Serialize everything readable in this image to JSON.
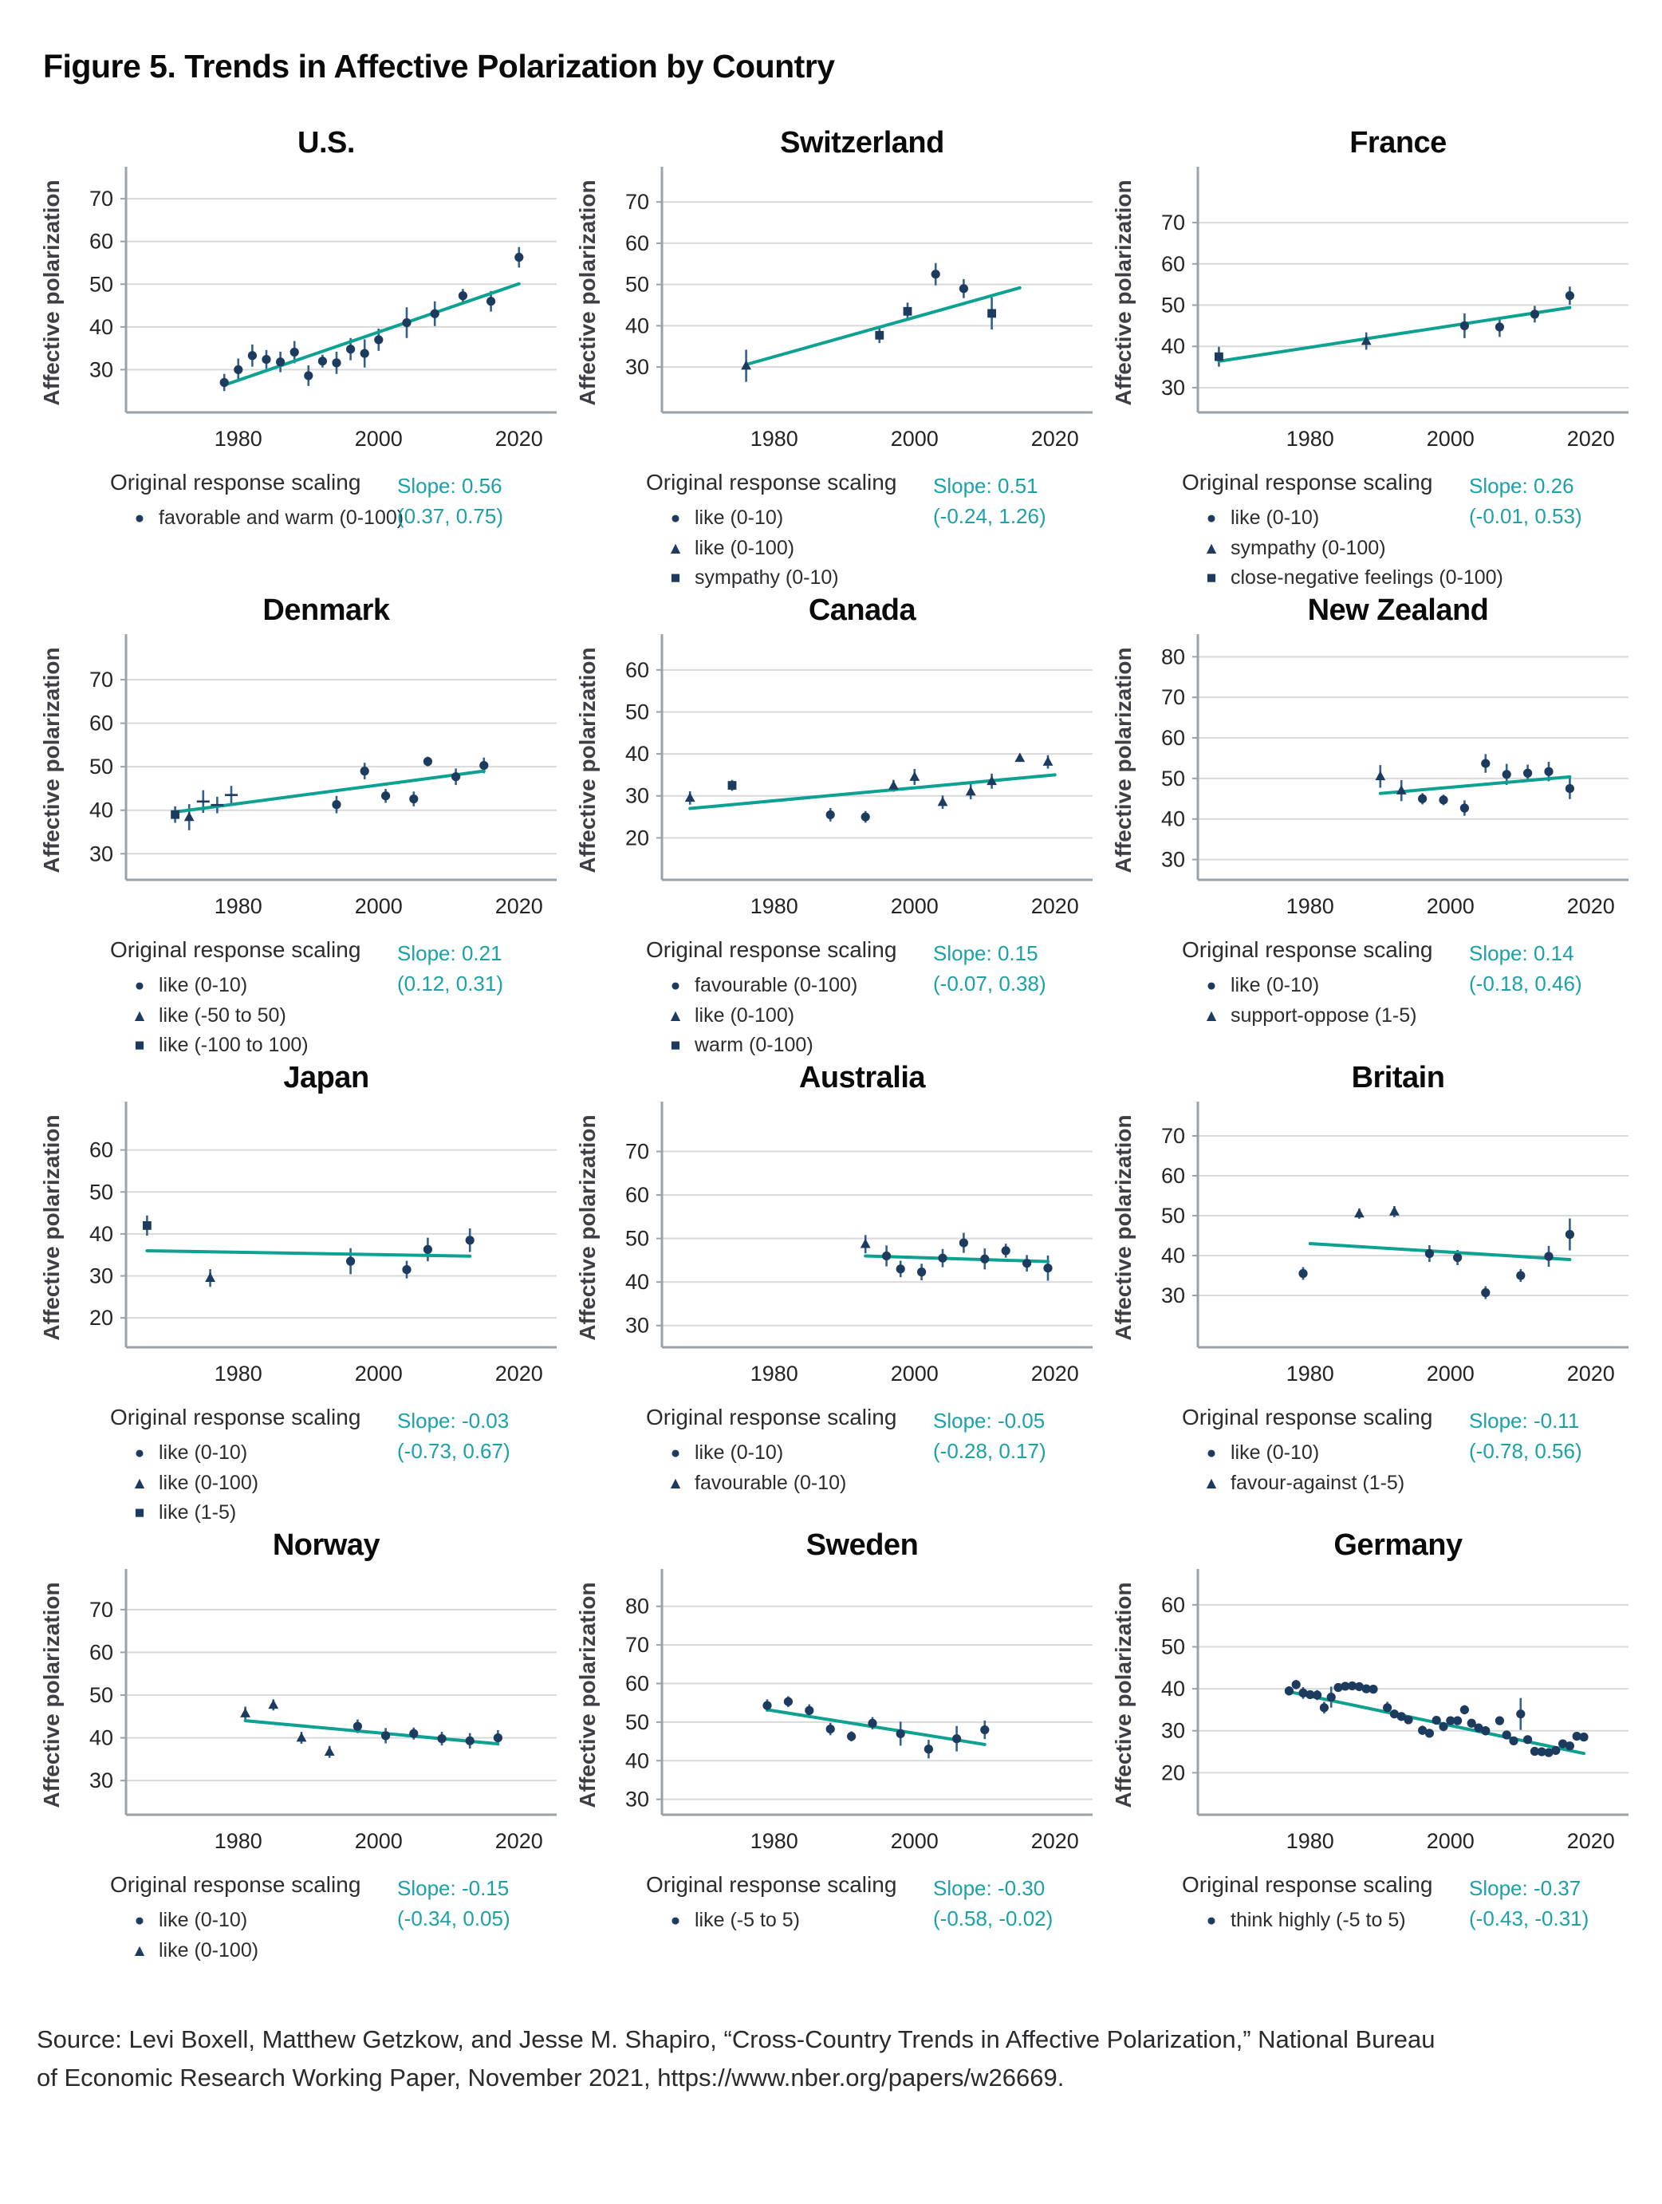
{
  "figure": {
    "title": "Figure 5. Trends in Affective Polarization by Country",
    "source_lines": [
      "Source: Levi Boxell, Matthew Getzkow, and Jesse M. Shapiro, “Cross-Country Trends in Affective Polarization,” National Bureau",
      "of Economic Research Working Paper, November 2021, https://www.nber.org/papers/w26669."
    ]
  },
  "legend_title": "Original response scaling",
  "markers": {
    "circle": "●",
    "triangle": "▲",
    "square": "■",
    "plus": "+"
  },
  "colors": {
    "point_navy": "#1d3a5f",
    "errorbar_blue": "#31608c",
    "trend_teal": "#0ca190",
    "slope_text_teal": "#1ba1a8",
    "grid_gray": "#d9d9d9",
    "spine_gray": "#9aa1a7",
    "tick_text": "#242428",
    "axis_label_gray": "#3e3e44"
  },
  "axis": {
    "ylabel": "Affective polarization",
    "xticks": [
      1980,
      2000,
      2020
    ],
    "xlim": [
      1964,
      2024
    ]
  },
  "chart_data": [
    {
      "type": "scatter",
      "title": "U.S.",
      "ylim": [
        20,
        76
      ],
      "yticks": [
        30,
        40,
        50,
        60,
        70
      ],
      "slope": "Slope: 0.56",
      "ci": "(0.37, 0.75)",
      "legend": [
        {
          "marker": "circle",
          "label": "favorable and warm (0-100)"
        }
      ],
      "points": [
        [
          1978,
          27,
          2
        ],
        [
          1980,
          30,
          2.6
        ],
        [
          1982,
          33.3,
          2.6
        ],
        [
          1984,
          32.4,
          2.2
        ],
        [
          1986,
          31.8,
          2.4
        ],
        [
          1988,
          34.1,
          2.6
        ],
        [
          1990,
          28.6,
          2.4
        ],
        [
          1992,
          32,
          1.5
        ],
        [
          1994,
          31.6,
          2.6
        ],
        [
          1996,
          34.8,
          2.6
        ],
        [
          1998,
          33.8,
          3.3
        ],
        [
          2000,
          37,
          2.6
        ],
        [
          2004,
          41,
          3.6
        ],
        [
          2008,
          43.1,
          2.9
        ],
        [
          2012,
          47.3,
          1.6
        ],
        [
          2016,
          46,
          2.4
        ],
        [
          2020,
          56.3,
          2.4
        ]
      ],
      "trend": {
        "x1": 1978,
        "y1": 26.4,
        "x2": 2020,
        "y2": 50.1
      }
    },
    {
      "type": "scatter",
      "title": "Switzerland",
      "ylim": [
        19,
        77
      ],
      "yticks": [
        30,
        40,
        50,
        60,
        70
      ],
      "slope": "Slope: 0.51",
      "ci": "(-0.24, 1.26)",
      "legend": [
        {
          "marker": "circle",
          "label": "like (0-10)"
        },
        {
          "marker": "triangle",
          "label": "like (0-100)"
        },
        {
          "marker": "square",
          "label": "sympathy (0-10)"
        }
      ],
      "points": [
        [
          1976,
          30.3,
          3.9,
          "triangle"
        ],
        [
          1995,
          37.7,
          1.9,
          "square"
        ],
        [
          1999,
          43.5,
          2.1,
          "square"
        ],
        [
          2003,
          52.5,
          2.7,
          "circle"
        ],
        [
          2007,
          49,
          2.3,
          "circle"
        ],
        [
          2011,
          43,
          3.9,
          "square"
        ]
      ],
      "trend": {
        "x1": 1976,
        "y1": 30.6,
        "x2": 2015,
        "y2": 49.2
      }
    },
    {
      "type": "scatter",
      "title": "France",
      "ylim": [
        24,
        82
      ],
      "yticks": [
        30,
        40,
        50,
        60,
        70
      ],
      "slope": "Slope: 0.26",
      "ci": "(-0.01, 0.53)",
      "legend": [
        {
          "marker": "circle",
          "label": "like (0-10)"
        },
        {
          "marker": "triangle",
          "label": "sympathy (0-100)"
        },
        {
          "marker": "square",
          "label": "close-negative feelings (0-100)"
        }
      ],
      "points": [
        [
          1967,
          37.5,
          2.4,
          "square"
        ],
        [
          1988,
          41.3,
          2.1,
          "triangle"
        ],
        [
          2002,
          45,
          3,
          "circle"
        ],
        [
          2007,
          44.7,
          2.4,
          "circle"
        ],
        [
          2012,
          47.8,
          2,
          "circle"
        ],
        [
          2017,
          52.3,
          2.2,
          "circle"
        ]
      ],
      "trend": {
        "x1": 1967,
        "y1": 36.4,
        "x2": 2017,
        "y2": 49.4
      }
    },
    {
      "type": "scatter",
      "title": "Denmark",
      "ylim": [
        24,
        79
      ],
      "yticks": [
        30,
        40,
        50,
        60,
        70
      ],
      "slope": "Slope: 0.21",
      "ci": "(0.12, 0.31)",
      "legend": [
        {
          "marker": "circle",
          "label": "like (0-10)"
        },
        {
          "marker": "triangle",
          "label": "like (-50 to 50)"
        },
        {
          "marker": "square",
          "label": "like (-100 to 100)"
        }
      ],
      "points": [
        [
          1971,
          39,
          1.9,
          "square"
        ],
        [
          1973,
          38.4,
          3,
          "triangle"
        ],
        [
          1975,
          42,
          2.6,
          "plus"
        ],
        [
          1977,
          41.2,
          1.9,
          "plus"
        ],
        [
          1979,
          43.5,
          2.1,
          "plus"
        ],
        [
          1994,
          41.3,
          2,
          "circle"
        ],
        [
          1998,
          49,
          1.9,
          "circle"
        ],
        [
          2001,
          43.3,
          1.6,
          "circle"
        ],
        [
          2005,
          42.6,
          1.7,
          "circle"
        ],
        [
          2007,
          51.2,
          1.1,
          "circle"
        ],
        [
          2011,
          47.7,
          1.9,
          "circle"
        ],
        [
          2015,
          50.3,
          1.8,
          "circle"
        ]
      ],
      "trend": {
        "x1": 1971,
        "y1": 39.6,
        "x2": 2015,
        "y2": 49
      }
    },
    {
      "type": "scatter",
      "title": "Canada",
      "ylim": [
        10,
        67
      ],
      "yticks": [
        20,
        30,
        40,
        50,
        60
      ],
      "slope": "Slope: 0.15",
      "ci": "(-0.07, 0.38)",
      "legend": [
        {
          "marker": "circle",
          "label": "favourable (0-100)"
        },
        {
          "marker": "triangle",
          "label": "like (0-100)"
        },
        {
          "marker": "square",
          "label": "warm (0-100)"
        }
      ],
      "points": [
        [
          1968,
          29.5,
          1.6,
          "triangle"
        ],
        [
          1974,
          32.5,
          1.3,
          "square"
        ],
        [
          1988,
          25.5,
          1.6,
          "circle"
        ],
        [
          1993,
          25,
          1.4,
          "circle"
        ],
        [
          1997,
          32.4,
          1.4,
          "triangle"
        ],
        [
          2000,
          34.5,
          1.9,
          "triangle"
        ],
        [
          2004,
          28.5,
          1.6,
          "triangle"
        ],
        [
          2008,
          31,
          1.8,
          "triangle"
        ],
        [
          2011,
          33.5,
          1.8,
          "triangle"
        ],
        [
          2015,
          39,
          0.9,
          "triangle"
        ],
        [
          2019,
          38.1,
          1.6,
          "triangle"
        ]
      ],
      "trend": {
        "x1": 1968,
        "y1": 27,
        "x2": 2020,
        "y2": 35
      }
    },
    {
      "type": "scatter",
      "title": "New Zealand",
      "ylim": [
        25,
        84
      ],
      "yticks": [
        30,
        40,
        50,
        60,
        70,
        80
      ],
      "slope": "Slope: 0.14",
      "ci": "(-0.18, 0.46)",
      "legend": [
        {
          "marker": "circle",
          "label": "like (0-10)"
        },
        {
          "marker": "triangle",
          "label": "support-oppose (1-5)"
        }
      ],
      "points": [
        [
          1990,
          50.5,
          2.8,
          "triangle"
        ],
        [
          1993,
          47,
          2.6,
          "triangle"
        ],
        [
          1996,
          45,
          1.4,
          "circle"
        ],
        [
          1999,
          44.7,
          1.3,
          "circle"
        ],
        [
          2002,
          42.7,
          1.9,
          "circle"
        ],
        [
          2005,
          53.7,
          2.3,
          "circle"
        ],
        [
          2008,
          51,
          2.6,
          "circle"
        ],
        [
          2011,
          51.3,
          2.1,
          "circle"
        ],
        [
          2014,
          51.7,
          2.4,
          "circle"
        ],
        [
          2017,
          47.5,
          2.6,
          "circle"
        ]
      ],
      "trend": {
        "x1": 1990,
        "y1": 46.3,
        "x2": 2017,
        "y2": 50.4
      }
    },
    {
      "type": "scatter",
      "title": "Japan",
      "ylim": [
        13,
        70
      ],
      "yticks": [
        20,
        30,
        40,
        50,
        60
      ],
      "slope": "Slope: -0.03",
      "ci": "(-0.73, 0.67)",
      "legend": [
        {
          "marker": "circle",
          "label": "like (0-10)"
        },
        {
          "marker": "triangle",
          "label": "like (0-100)"
        },
        {
          "marker": "square",
          "label": "like (1-5)"
        }
      ],
      "points": [
        [
          1967,
          42,
          2.4,
          "square"
        ],
        [
          1976,
          29.5,
          2.1,
          "triangle"
        ],
        [
          1996,
          33.5,
          3.1,
          "circle"
        ],
        [
          2004,
          31.5,
          2.1,
          "circle"
        ],
        [
          2007,
          36.3,
          2.8,
          "circle"
        ],
        [
          2013,
          38.5,
          2.8,
          "circle"
        ]
      ],
      "trend": {
        "x1": 1967,
        "y1": 36,
        "x2": 2013,
        "y2": 34.7
      }
    },
    {
      "type": "scatter",
      "title": "Australia",
      "ylim": [
        25,
        80
      ],
      "yticks": [
        30,
        40,
        50,
        60,
        70
      ],
      "slope": "Slope: -0.05",
      "ci": "(-0.28, 0.17)",
      "legend": [
        {
          "marker": "circle",
          "label": "like (0-10)"
        },
        {
          "marker": "triangle",
          "label": "favourable (0-10)"
        }
      ],
      "points": [
        [
          1993,
          48.7,
          2.1,
          "triangle"
        ],
        [
          1996,
          46,
          2.4,
          "circle"
        ],
        [
          1998,
          43,
          1.9,
          "circle"
        ],
        [
          2001,
          42.3,
          1.9,
          "circle"
        ],
        [
          2004,
          45.5,
          2.1,
          "circle"
        ],
        [
          2007,
          49,
          2.3,
          "circle"
        ],
        [
          2010,
          45.3,
          2.4,
          "circle"
        ],
        [
          2013,
          47.2,
          1.6,
          "circle"
        ],
        [
          2016,
          44.3,
          1.9,
          "circle"
        ],
        [
          2019,
          43.2,
          2.9,
          "circle"
        ]
      ],
      "trend": {
        "x1": 1993,
        "y1": 46,
        "x2": 2019,
        "y2": 44.7
      }
    },
    {
      "type": "scatter",
      "title": "Britain",
      "ylim": [
        17,
        77
      ],
      "yticks": [
        30,
        40,
        50,
        60,
        70
      ],
      "slope": "Slope: -0.11",
      "ci": "(-0.78, 0.56)",
      "legend": [
        {
          "marker": "circle",
          "label": "like (0-10)"
        },
        {
          "marker": "triangle",
          "label": "favour-against (1-5)"
        }
      ],
      "points": [
        [
          1979,
          35.5,
          1.6,
          "circle"
        ],
        [
          1987,
          50.5,
          1.3,
          "triangle"
        ],
        [
          1992,
          51,
          1.4,
          "triangle"
        ],
        [
          1997,
          40.5,
          2.1,
          "circle"
        ],
        [
          2001,
          39.5,
          1.9,
          "circle"
        ],
        [
          2005,
          30.7,
          1.6,
          "circle"
        ],
        [
          2010,
          35,
          1.6,
          "circle"
        ],
        [
          2014,
          39.8,
          2.6,
          "circle"
        ],
        [
          2017,
          45.3,
          4,
          "circle"
        ]
      ],
      "trend": {
        "x1": 1980,
        "y1": 43,
        "x2": 2017,
        "y2": 39
      }
    },
    {
      "type": "scatter",
      "title": "Norway",
      "ylim": [
        22,
        78
      ],
      "yticks": [
        30,
        40,
        50,
        60,
        70
      ],
      "slope": "Slope: -0.15",
      "ci": "(-0.34, 0.05)",
      "legend": [
        {
          "marker": "circle",
          "label": "like (0-10)"
        },
        {
          "marker": "triangle",
          "label": "like (0-100)"
        }
      ],
      "points": [
        [
          1981,
          45.7,
          1.6,
          "triangle"
        ],
        [
          1985,
          47.7,
          1.3,
          "triangle"
        ],
        [
          1989,
          40,
          1.4,
          "triangle"
        ],
        [
          1993,
          36.7,
          1.4,
          "triangle"
        ],
        [
          1997,
          42.7,
          1.6,
          "circle"
        ],
        [
          2001,
          40.5,
          1.8,
          "circle"
        ],
        [
          2005,
          41,
          1.4,
          "circle"
        ],
        [
          2009,
          39.8,
          1.6,
          "circle"
        ],
        [
          2013,
          39.3,
          1.8,
          "circle"
        ],
        [
          2017,
          40,
          1.8,
          "circle"
        ]
      ],
      "trend": {
        "x1": 1981,
        "y1": 44,
        "x2": 2017,
        "y2": 38.6
      }
    },
    {
      "type": "scatter",
      "title": "Sweden",
      "ylim": [
        26,
        88
      ],
      "yticks": [
        30,
        40,
        50,
        60,
        70,
        80
      ],
      "slope": "Slope: -0.30",
      "ci": "(-0.58, -0.02)",
      "legend": [
        {
          "marker": "circle",
          "label": "like (-5 to 5)"
        }
      ],
      "points": [
        [
          1979,
          54.3,
          1.6
        ],
        [
          1982,
          55.3,
          1.4
        ],
        [
          1985,
          53,
          1.6
        ],
        [
          1988,
          48.2,
          1.6
        ],
        [
          1991,
          46.3,
          1.3
        ],
        [
          1994,
          49.7,
          1.6
        ],
        [
          1998,
          47,
          3.1
        ],
        [
          2002,
          43,
          2.4
        ],
        [
          2006,
          45.7,
          3.3
        ],
        [
          2010,
          48,
          2.4
        ]
      ],
      "trend": {
        "x1": 1979,
        "y1": 53.2,
        "x2": 2010,
        "y2": 44.2
      }
    },
    {
      "type": "scatter",
      "title": "Germany",
      "ylim": [
        10,
        67
      ],
      "yticks": [
        20,
        30,
        40,
        50,
        60
      ],
      "slope": "Slope: -0.37",
      "ci": "(-0.43, -0.31)",
      "legend": [
        {
          "marker": "circle",
          "label": "think highly (-5 to 5)"
        }
      ],
      "points": [
        [
          1977,
          39.5,
          1.1
        ],
        [
          1978,
          41,
          1.1
        ],
        [
          1979,
          39,
          1.4
        ],
        [
          1980,
          38.6,
          1
        ],
        [
          1981,
          38.5,
          1.2
        ],
        [
          1982,
          35.5,
          1.4
        ],
        [
          1983,
          38,
          2.5
        ],
        [
          1984,
          40.3,
          0.9
        ],
        [
          1985,
          40.6,
          0.8
        ],
        [
          1986,
          40.7,
          0.8
        ],
        [
          1987,
          40.5,
          0.9
        ],
        [
          1988,
          40,
          1
        ],
        [
          1989,
          39.9,
          1
        ],
        [
          1991,
          35.5,
          1.4
        ],
        [
          1992,
          34,
          1
        ],
        [
          1993,
          33.4,
          0.9
        ],
        [
          1994,
          32.6,
          1
        ],
        [
          1996,
          30.1,
          1.1
        ],
        [
          1997,
          29.4,
          1
        ],
        [
          1998,
          32.5,
          1
        ],
        [
          1999,
          31,
          1.1
        ],
        [
          2000,
          32.4,
          1
        ],
        [
          2001,
          32.4,
          1
        ],
        [
          2002,
          35,
          1.1
        ],
        [
          2003,
          31.8,
          1
        ],
        [
          2004,
          30.7,
          1
        ],
        [
          2005,
          30,
          1.1
        ],
        [
          2007,
          32.4,
          1
        ],
        [
          2008,
          29,
          1
        ],
        [
          2009,
          27.6,
          1
        ],
        [
          2010,
          34,
          3.8
        ],
        [
          2011,
          27.9,
          1
        ],
        [
          2012,
          25.1,
          0.9
        ],
        [
          2013,
          25,
          0.9
        ],
        [
          2014,
          24.8,
          0.9
        ],
        [
          2015,
          25.3,
          0.9
        ],
        [
          2016,
          26.9,
          0.9
        ],
        [
          2017,
          26.4,
          0.9
        ],
        [
          2018,
          28.7,
          0.9
        ],
        [
          2019,
          28.5,
          0.9
        ]
      ],
      "trend": {
        "x1": 1977,
        "y1": 39.3,
        "x2": 2019,
        "y2": 24.6
      }
    }
  ]
}
